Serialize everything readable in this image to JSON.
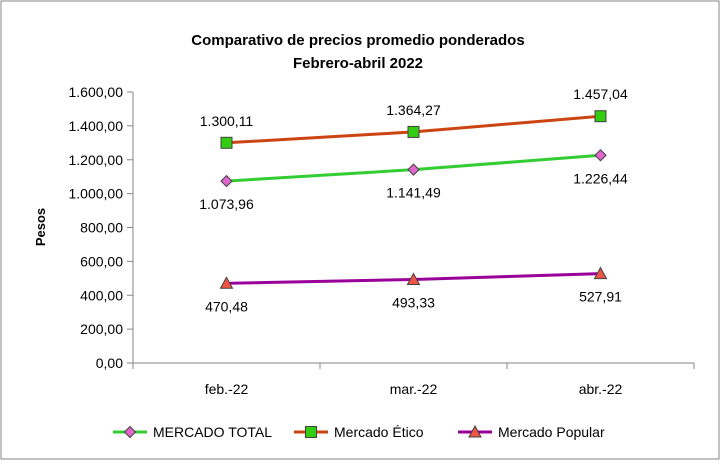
{
  "chart_data": {
    "type": "line",
    "title": "Comparativo de precios promedio ponderados",
    "subtitle": "Febrero-abril 2022",
    "ylabel": "Pesos",
    "xlabel": "",
    "categories": [
      "feb.-22",
      "mar.-22",
      "abr.-22"
    ],
    "ylim": [
      0,
      1600
    ],
    "ytick_step": 200,
    "ytick_labels": [
      "0,00",
      "200,00",
      "400,00",
      "600,00",
      "800,00",
      "1.000,00",
      "1.200,00",
      "1.400,00",
      "1.600,00"
    ],
    "grid": false,
    "legend_position": "bottom",
    "series": [
      {
        "name": "MERCADO TOTAL",
        "values": [
          1073.96,
          1141.49,
          1226.44
        ],
        "labels": [
          "1.073,96",
          "1.141,49",
          "1.226,44"
        ],
        "color": "#33cc33",
        "marker": "diamond",
        "marker_color": "#e066cc",
        "label_position": "below"
      },
      {
        "name": "Mercado Ético",
        "values": [
          1300.11,
          1364.27,
          1457.04
        ],
        "labels": [
          "1.300,11",
          "1.364,27",
          "1.457,04"
        ],
        "color": "#cc4411",
        "marker": "square",
        "marker_color": "#33cc11",
        "label_position": "above"
      },
      {
        "name": "Mercado Popular",
        "values": [
          470.48,
          493.33,
          527.91
        ],
        "labels": [
          "470,48",
          "493,33",
          "527,91"
        ],
        "color": "#990099",
        "marker": "triangle",
        "marker_color": "#ee5544",
        "label_position": "below"
      }
    ]
  }
}
